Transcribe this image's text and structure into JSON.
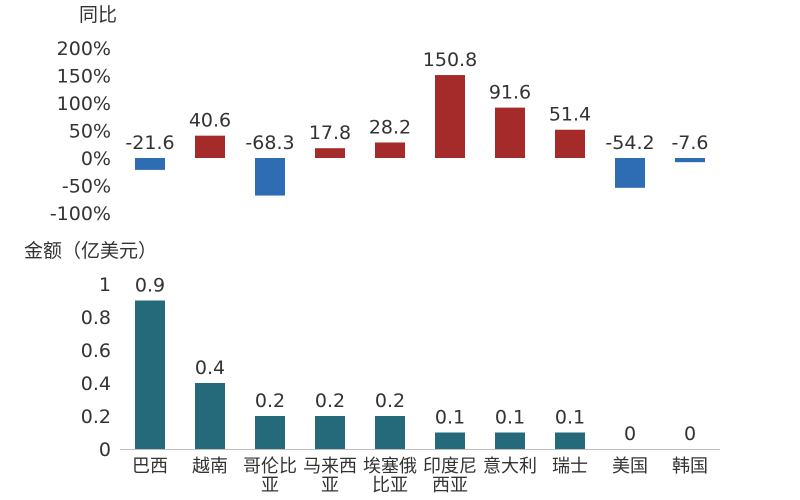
{
  "chart_data": [
    {
      "type": "bar",
      "ylabel": "同比",
      "categories": [
        "巴西",
        "越南",
        "哥伦比亚",
        "马来西亚",
        "埃塞俄比亚",
        "印度尼西亚",
        "意大利",
        "瑞士",
        "美国",
        "韩国"
      ],
      "values": [
        -21.6,
        40.6,
        -68.3,
        17.8,
        28.2,
        150.8,
        91.6,
        51.4,
        -54.2,
        -7.6
      ],
      "value_labels": [
        "-21.6",
        "40.6",
        "-68.3",
        "17.8",
        "28.2",
        "150.8",
        "91.6",
        "51.4",
        "-54.2",
        "-7.6"
      ],
      "yticks": [
        "200%",
        "150%",
        "100%",
        "50%",
        "0%",
        "-50%",
        "-100%"
      ],
      "ytick_values": [
        200,
        150,
        100,
        50,
        0,
        -50,
        -100
      ],
      "ylim": [
        -100,
        200
      ],
      "colors": {
        "positive": "#A52A2A",
        "negative": "#2E6DB4"
      },
      "grid": false
    },
    {
      "type": "bar",
      "ylabel": "金额（亿美元）",
      "categories": [
        "巴西",
        "越南",
        "哥伦比亚",
        "马来西亚",
        "埃塞俄比亚",
        "印度尼西亚",
        "意大利",
        "瑞士",
        "美国",
        "韩国"
      ],
      "category_lines": [
        [
          "巴西"
        ],
        [
          "越南"
        ],
        [
          "哥伦比",
          "亚"
        ],
        [
          "马来西",
          "亚"
        ],
        [
          "埃塞俄",
          "比亚"
        ],
        [
          "印度尼",
          "西亚"
        ],
        [
          "意大利"
        ],
        [
          "瑞士"
        ],
        [
          "美国"
        ],
        [
          "韩国"
        ]
      ],
      "values": [
        0.9,
        0.4,
        0.2,
        0.2,
        0.2,
        0.1,
        0.1,
        0.1,
        0,
        0
      ],
      "value_labels": [
        "0.9",
        "0.4",
        "0.2",
        "0.2",
        "0.2",
        "0.1",
        "0.1",
        "0.1",
        "0",
        "0"
      ],
      "yticks": [
        "1",
        "0.8",
        "0.6",
        "0.4",
        "0.2",
        "0"
      ],
      "ytick_values": [
        1,
        0.8,
        0.6,
        0.4,
        0.2,
        0
      ],
      "ylim": [
        0,
        1
      ],
      "colors": {
        "bar": "#256A7A",
        "axis": "#BFBFBF"
      },
      "grid": false
    }
  ]
}
